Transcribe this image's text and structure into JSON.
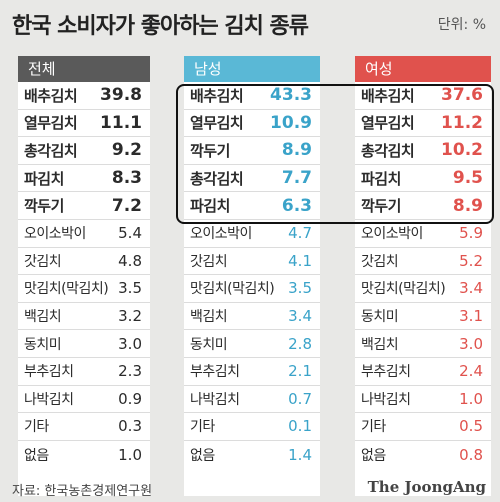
{
  "title": "한국 소비자가 좋아하는 김치 종류",
  "unit": "단위: %",
  "source": "자료: 한국농촌경제연구원",
  "logo": "The JoongAng",
  "chart_data": {
    "type": "table",
    "title": "한국 소비자가 좋아하는 김치 종류",
    "unit": "%",
    "groups": [
      {
        "name": "전체",
        "color": "#5a5a5a",
        "rows": [
          {
            "label": "배추김치",
            "value": 39.8
          },
          {
            "label": "열무김치",
            "value": 11.1
          },
          {
            "label": "총각김치",
            "value": 9.2
          },
          {
            "label": "파김치",
            "value": 8.3
          },
          {
            "label": "깍두기",
            "value": 7.2
          },
          {
            "label": "오이소박이",
            "value": 5.4
          },
          {
            "label": "갓김치",
            "value": 4.8
          },
          {
            "label": "맛김치(막김치)",
            "value": 3.5
          },
          {
            "label": "백김치",
            "value": 3.2
          },
          {
            "label": "동치미",
            "value": 3.0
          },
          {
            "label": "부추김치",
            "value": 2.3
          },
          {
            "label": "나박김치",
            "value": 0.9
          },
          {
            "label": "기타",
            "value": 0.3
          },
          {
            "label": "없음",
            "value": 1.0
          }
        ]
      },
      {
        "name": "남성",
        "color": "#5ab8d6",
        "rows": [
          {
            "label": "배추김치",
            "value": 43.3
          },
          {
            "label": "열무김치",
            "value": 10.9
          },
          {
            "label": "깍두기",
            "value": 8.9
          },
          {
            "label": "총각김치",
            "value": 7.7
          },
          {
            "label": "파김치",
            "value": 6.3
          },
          {
            "label": "오이소박이",
            "value": 4.7
          },
          {
            "label": "갓김치",
            "value": 4.1
          },
          {
            "label": "맛김치(막김치)",
            "value": 3.5
          },
          {
            "label": "백김치",
            "value": 3.4
          },
          {
            "label": "동치미",
            "value": 2.8
          },
          {
            "label": "부추김치",
            "value": 2.1
          },
          {
            "label": "나박김치",
            "value": 0.7
          },
          {
            "label": "기타",
            "value": 0.1
          },
          {
            "label": "없음",
            "value": 1.4
          }
        ]
      },
      {
        "name": "여성",
        "color": "#e0524d",
        "rows": [
          {
            "label": "배추김치",
            "value": 37.6
          },
          {
            "label": "열무김치",
            "value": 11.2
          },
          {
            "label": "총각김치",
            "value": 10.2
          },
          {
            "label": "파김치",
            "value": 9.5
          },
          {
            "label": "깍두기",
            "value": 8.9
          },
          {
            "label": "오이소박이",
            "value": 5.9
          },
          {
            "label": "갓김치",
            "value": 5.2
          },
          {
            "label": "맛김치(막김치)",
            "value": 3.4
          },
          {
            "label": "동치미",
            "value": 3.1
          },
          {
            "label": "백김치",
            "value": 3.0
          },
          {
            "label": "부추김치",
            "value": 2.4
          },
          {
            "label": "나박김치",
            "value": 1.0
          },
          {
            "label": "기타",
            "value": 0.5
          },
          {
            "label": "없음",
            "value": 0.8
          }
        ]
      }
    ],
    "highlighted_top_n": 5
  }
}
